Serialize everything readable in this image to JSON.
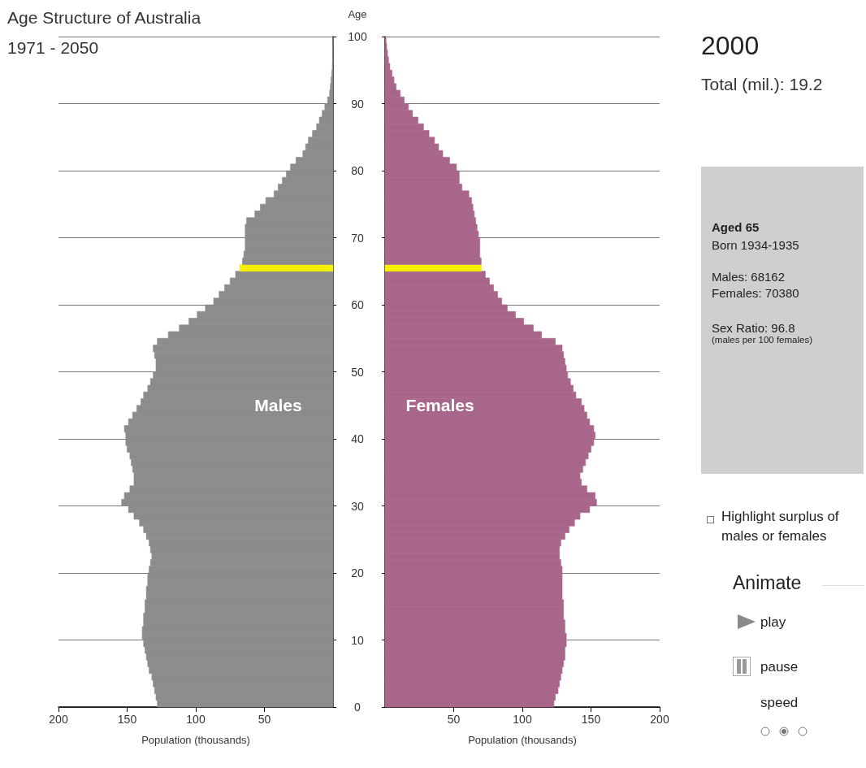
{
  "chart_data": [
    {
      "type": "bar",
      "orientation": "horizontal",
      "title": "Age Structure of Australia",
      "subtitle": "1971 - 2050",
      "xlabel": "Population (thousands)",
      "ylabel": "Age",
      "xlim": [
        200,
        0
      ],
      "xticks": [
        200,
        150,
        100,
        50
      ],
      "ylim": [
        0,
        100
      ],
      "yticks": [
        0,
        10,
        20,
        30,
        40,
        50,
        60,
        70,
        80,
        90,
        100
      ],
      "grid": "y",
      "x": [
        0.5,
        1.5,
        2.5,
        3.5,
        4.5,
        5.5,
        6.5,
        7.5,
        8.5,
        9.5,
        10.5,
        11.5,
        12.5,
        13.5,
        14.5,
        15.5,
        16.5,
        17.5,
        18.5,
        19.5,
        20.5,
        21.5,
        22.5,
        23.5,
        24.5,
        25.5,
        26.5,
        27.5,
        28.5,
        29.5,
        30.5,
        31.5,
        32.5,
        33.5,
        34.5,
        35.5,
        36.5,
        37.5,
        38.5,
        39.5,
        40.5,
        41.5,
        42.5,
        43.5,
        44.5,
        45.5,
        46.5,
        47.5,
        48.5,
        49.5,
        50.5,
        51.5,
        52.5,
        53.5,
        54.5,
        55.5,
        56.5,
        57.5,
        58.5,
        59.5,
        60.5,
        61.5,
        62.5,
        63.5,
        64.5,
        65.5,
        66.5,
        67.5,
        68.5,
        69.5,
        70.5,
        71.5,
        72.5,
        73.5,
        74.5,
        75.5,
        76.5,
        77.5,
        78.5,
        79.5,
        80.5,
        81.5,
        82.5,
        83.5,
        84.5,
        85.5,
        86.5,
        87.5,
        88.5,
        89.5,
        90.5,
        91.5,
        92.5,
        93.5,
        94.5,
        95.5,
        96.5,
        97.5,
        98.5,
        99.5
      ],
      "series": [
        {
          "name": "Males",
          "color": "#8c8c8c",
          "values": [
            128,
            129,
            130,
            131,
            132,
            134,
            135,
            136,
            137,
            138,
            139,
            139,
            138,
            138,
            137,
            137,
            136,
            136,
            135,
            135,
            134,
            133,
            132,
            133,
            134,
            136,
            138,
            141,
            145,
            149,
            154,
            152,
            148,
            145,
            145,
            146,
            147,
            148,
            150,
            151,
            151,
            152,
            149,
            146,
            143,
            140,
            138,
            135,
            133,
            131,
            129,
            129,
            130,
            131,
            128,
            120,
            112,
            105,
            99,
            93,
            87,
            83,
            79,
            75,
            71,
            68,
            66,
            65,
            64,
            64,
            64,
            64,
            63,
            57,
            53,
            49,
            43,
            40,
            37,
            34,
            31,
            27,
            22,
            20,
            18,
            15,
            12,
            10,
            8,
            6,
            4,
            2.5,
            2,
            1.5,
            1,
            0.6,
            0.4,
            0.3,
            0.2,
            0.1
          ],
          "colors": [
            null,
            null,
            null,
            null,
            null,
            null,
            null,
            null,
            null,
            null,
            null,
            null,
            null,
            null,
            null,
            null,
            null,
            null,
            null,
            null,
            null,
            null,
            null,
            null,
            null,
            null,
            null,
            null,
            null,
            null,
            null,
            null,
            null,
            null,
            null,
            null,
            null,
            null,
            null,
            null,
            null,
            null,
            null,
            null,
            null,
            null,
            null,
            null,
            null,
            null,
            null,
            null,
            null,
            null,
            null,
            null,
            null,
            null,
            null,
            null,
            null,
            null,
            null,
            null,
            null,
            "#f4f000",
            null,
            null,
            null,
            null,
            null,
            null,
            null,
            null,
            null,
            null,
            null,
            null,
            null,
            null,
            null,
            null,
            null,
            null,
            null,
            null,
            null,
            null,
            null,
            null,
            null,
            null,
            null,
            null,
            null,
            null,
            null,
            null,
            null,
            null
          ]
        }
      ]
    },
    {
      "type": "bar",
      "orientation": "horizontal",
      "xlabel": "Population (thousands)",
      "xlim": [
        0,
        200
      ],
      "xticks": [
        50,
        100,
        150,
        200
      ],
      "ylim": [
        0,
        100
      ],
      "yticks": [
        0,
        10,
        20,
        30,
        40,
        50,
        60,
        70,
        80,
        90,
        100
      ],
      "grid": "y",
      "tick_labels": "x",
      "x": [
        0.5,
        1.5,
        2.5,
        3.5,
        4.5,
        5.5,
        6.5,
        7.5,
        8.5,
        9.5,
        10.5,
        11.5,
        12.5,
        13.5,
        14.5,
        15.5,
        16.5,
        17.5,
        18.5,
        19.5,
        20.5,
        21.5,
        22.5,
        23.5,
        24.5,
        25.5,
        26.5,
        27.5,
        28.5,
        29.5,
        30.5,
        31.5,
        32.5,
        33.5,
        34.5,
        35.5,
        36.5,
        37.5,
        38.5,
        39.5,
        40.5,
        41.5,
        42.5,
        43.5,
        44.5,
        45.5,
        46.5,
        47.5,
        48.5,
        49.5,
        50.5,
        51.5,
        52.5,
        53.5,
        54.5,
        55.5,
        56.5,
        57.5,
        58.5,
        59.5,
        60.5,
        61.5,
        62.5,
        63.5,
        64.5,
        65.5,
        66.5,
        67.5,
        68.5,
        69.5,
        70.5,
        71.5,
        72.5,
        73.5,
        74.5,
        75.5,
        76.5,
        77.5,
        78.5,
        79.5,
        80.5,
        81.5,
        82.5,
        83.5,
        84.5,
        85.5,
        86.5,
        87.5,
        88.5,
        89.5,
        90.5,
        91.5,
        92.5,
        93.5,
        94.5,
        95.5,
        96.5,
        97.5,
        98.5,
        99.5
      ],
      "series": [
        {
          "name": "Females",
          "color": "#a9668b",
          "values": [
            123,
            124,
            126,
            127,
            128,
            129,
            130,
            131,
            131,
            132,
            132,
            131,
            131,
            130,
            130,
            130,
            129,
            129,
            129,
            129,
            129,
            128,
            127,
            127,
            128,
            131,
            134,
            138,
            142,
            149,
            154,
            153,
            147,
            143,
            142,
            144,
            146,
            148,
            150,
            152,
            153,
            152,
            149,
            147,
            145,
            143,
            139,
            137,
            135,
            133,
            132,
            131,
            130,
            129,
            124,
            114,
            108,
            101,
            95,
            89,
            85,
            82,
            79,
            76,
            73,
            70,
            70,
            69,
            69,
            69,
            68,
            67,
            66,
            65,
            64,
            63,
            61,
            56,
            54,
            54,
            52,
            47,
            42,
            39,
            36,
            32,
            28,
            24,
            20,
            17,
            14,
            11,
            8,
            6.5,
            5,
            3.5,
            2.5,
            1.8,
            1.2,
            0.7
          ],
          "colors": [
            null,
            null,
            null,
            null,
            null,
            null,
            null,
            null,
            null,
            null,
            null,
            null,
            null,
            null,
            null,
            null,
            null,
            null,
            null,
            null,
            null,
            null,
            null,
            null,
            null,
            null,
            null,
            null,
            null,
            null,
            null,
            null,
            null,
            null,
            null,
            null,
            null,
            null,
            null,
            null,
            null,
            null,
            null,
            null,
            null,
            null,
            null,
            null,
            null,
            null,
            null,
            null,
            null,
            null,
            null,
            null,
            null,
            null,
            null,
            null,
            null,
            null,
            null,
            null,
            null,
            "#f4f000",
            null,
            null,
            null,
            null,
            null,
            null,
            null,
            null,
            null,
            null,
            null,
            null,
            null,
            null,
            null,
            null,
            null,
            null,
            null,
            null,
            null,
            null,
            null,
            null,
            null,
            null,
            null,
            null,
            null,
            null,
            null,
            null,
            null,
            null
          ]
        }
      ]
    },
    {
      "type": "other",
      "title": "2000",
      "subtitle": "Total (mil.): 19.2",
      "annotations": [
        "Aged 65",
        "Born 1934-1935",
        "Males: 68162",
        "Females: 70380",
        "Sex Ratio: 96.8",
        "(males per 100 females)",
        "Highlight surplus of males or females",
        "Animate",
        "play",
        "pause",
        "speed"
      ]
    }
  ]
}
